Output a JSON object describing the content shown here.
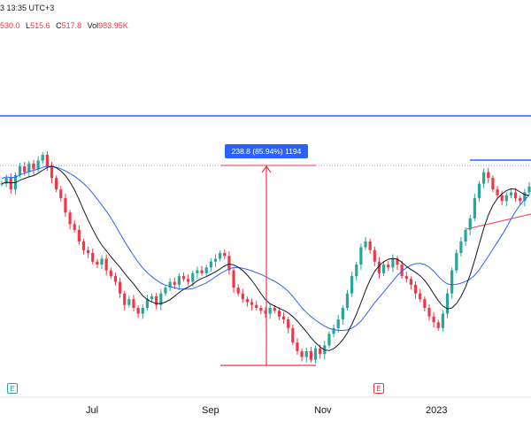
{
  "header": {
    "line1": "3 13:35 UTC+3",
    "ohlc": [
      {
        "key": "",
        "value": "530.0"
      },
      {
        "key": "L",
        "value": "515.6"
      },
      {
        "key": "C",
        "value": "517.8"
      },
      {
        "key": "Vol",
        "value": "983.95K"
      }
    ]
  },
  "measure_label": "238.8 (85.94%) 1194",
  "x_axis": [
    "Jul",
    "Sep",
    "Nov",
    "2023"
  ],
  "events": [
    {
      "label": "E",
      "color": "#26a69a"
    },
    {
      "label": "E",
      "color": "#f23645"
    }
  ],
  "colors": {
    "up": "#26a69a",
    "down": "#f23645",
    "ma_fast": "#131722",
    "ma_slow": "#2962ff",
    "measure": "#f23645",
    "hline": "#2962ff",
    "trend": "#f23645"
  },
  "chart_data": {
    "type": "candlestick",
    "title": "",
    "xlabel": "",
    "ylabel": "",
    "x_ticks": [
      "Jul",
      "Sep",
      "Nov",
      "2023"
    ],
    "closes": [
      0.6,
      0.62,
      0.58,
      0.63,
      0.66,
      0.64,
      0.67,
      0.65,
      0.68,
      0.7,
      0.66,
      0.62,
      0.58,
      0.55,
      0.5,
      0.46,
      0.44,
      0.4,
      0.37,
      0.36,
      0.33,
      0.32,
      0.34,
      0.3,
      0.28,
      0.26,
      0.22,
      0.18,
      0.2,
      0.17,
      0.15,
      0.17,
      0.2,
      0.21,
      0.18,
      0.22,
      0.24,
      0.26,
      0.25,
      0.28,
      0.27,
      0.26,
      0.29,
      0.3,
      0.29,
      0.31,
      0.33,
      0.34,
      0.36,
      0.35,
      0.3,
      0.24,
      0.22,
      0.2,
      0.19,
      0.18,
      0.17,
      0.16,
      0.15,
      0.17,
      0.16,
      0.14,
      0.13,
      0.1,
      0.05,
      0.02,
      0.0,
      0.02,
      -0.01,
      0.03,
      0.01,
      0.04,
      0.08,
      0.1,
      0.13,
      0.17,
      0.22,
      0.28,
      0.32,
      0.38,
      0.4,
      0.37,
      0.33,
      0.29,
      0.32,
      0.31,
      0.34,
      0.32,
      0.28,
      0.27,
      0.25,
      0.22,
      0.2,
      0.17,
      0.14,
      0.12,
      0.1,
      0.15,
      0.22,
      0.3,
      0.36,
      0.4,
      0.44,
      0.48,
      0.55,
      0.6,
      0.64,
      0.62,
      0.58,
      0.56,
      0.54,
      0.56,
      0.57,
      0.55,
      0.54,
      0.57,
      0.59
    ]
  }
}
